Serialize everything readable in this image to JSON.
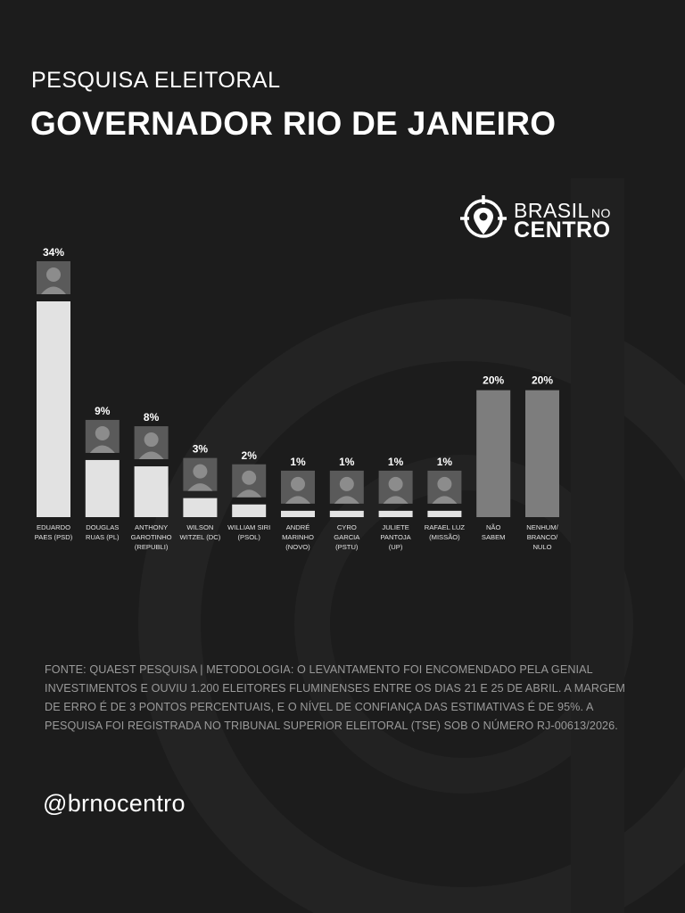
{
  "header": {
    "kicker": "PESQUISA ELEITORAL",
    "title": "GOVERNADOR RIO DE JANEIRO"
  },
  "logo": {
    "line1": "BRASIL",
    "line1_small": "NO",
    "line2": "CENTRO"
  },
  "chart_data": {
    "type": "bar",
    "unit": "%",
    "ylim": [
      0,
      34
    ],
    "categories": [
      [
        "EDUARDO",
        "PAES (PSD)"
      ],
      [
        "DOUGLAS",
        "RUAS (PL)"
      ],
      [
        "ANTHONY",
        "GAROTINHO",
        "(REPUBLI)"
      ],
      [
        "WILSON",
        "WITZEL (DC)"
      ],
      [
        "WILLIAM SIRI",
        "(PSOL)"
      ],
      [
        "ANDRÉ",
        "MARINHO",
        "(NOVO)"
      ],
      [
        "CYRO",
        "GARCIA",
        "(PSTU)"
      ],
      [
        "JULIETE",
        "PANTOJA",
        "(UP)"
      ],
      [
        "RAFAEL LUZ",
        "(MISSÃO)"
      ],
      [
        "NÃO",
        "SABEM"
      ],
      [
        "NENHUM/",
        "BRANCO/",
        "NULO"
      ]
    ],
    "values": [
      34,
      9,
      8,
      3,
      2,
      1,
      1,
      1,
      1,
      20,
      20
    ],
    "value_labels": [
      "34%",
      "9%",
      "8%",
      "3%",
      "2%",
      "1%",
      "1%",
      "1%",
      "1%",
      "20%",
      "20%"
    ],
    "has_photo": [
      true,
      true,
      true,
      true,
      true,
      true,
      true,
      true,
      true,
      false,
      false
    ],
    "bar_colors": [
      "#e2e2e2",
      "#e2e2e2",
      "#e2e2e2",
      "#e2e2e2",
      "#e2e2e2",
      "#e2e2e2",
      "#e2e2e2",
      "#e2e2e2",
      "#e2e2e2",
      "#7d7d7d",
      "#7d7d7d"
    ]
  },
  "footer": {
    "source": "FONTE: QUAEST PESQUISA | METODOLOGIA: O LEVANTAMENTO FOI ENCOMENDADO PELA GENIAL INVESTIMENTOS E OUVIU 1.200 ELEITORES FLUMINENSES ENTRE OS DIAS 21 E 25 DE ABRIL. A MARGEM DE ERRO É DE 3 PONTOS PERCENTUAIS, E O NÍVEL DE CONFIANÇA DAS ESTIMATIVAS É DE 95%. A PESQUISA FOI REGISTRADA NO TRIBUNAL SUPERIOR ELEITORAL (TSE) SOB O NÚMERO RJ-00613/2026.",
    "handle": "@brnocentro"
  },
  "colors": {
    "background": "#1c1c1c",
    "bar_candidate": "#e2e2e2",
    "bar_other": "#7d7d7d",
    "text": "#ffffff",
    "source_text": "#9a9a9a"
  }
}
